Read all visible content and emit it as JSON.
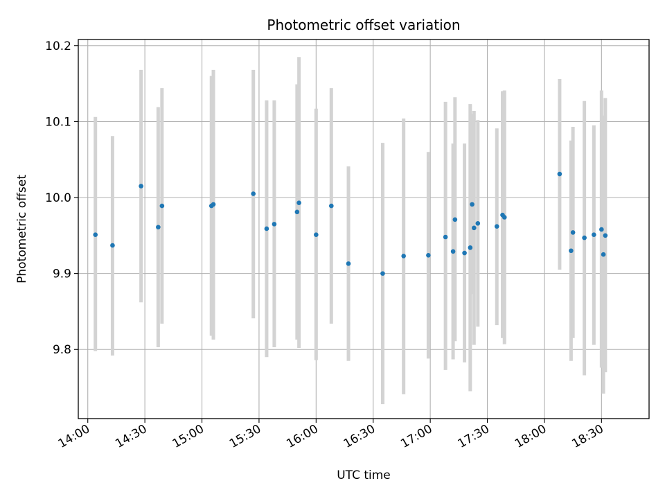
{
  "chart_data": {
    "type": "scatter",
    "title": "Photometric offset variation",
    "xlabel": "UTC time",
    "ylabel": "Photometric offset",
    "x_ticks": [
      "14:00",
      "14:30",
      "15:00",
      "15:30",
      "16:00",
      "16:30",
      "17:00",
      "17:30",
      "18:00",
      "18:30"
    ],
    "y_ticks": [
      "9.8",
      "9.9",
      "10.0",
      "10.1",
      "10.2"
    ],
    "xlim": [
      "13:55",
      "18:55"
    ],
    "ylim": [
      9.709,
      10.208
    ],
    "grid": true,
    "error_bar_color": "#d3d3d3",
    "point_color": "#1f77b4",
    "series": [
      {
        "points": [
          {
            "x": "14:04",
            "y": 9.951,
            "ylow": 9.798,
            "yhigh": 10.106
          },
          {
            "x": "14:13",
            "y": 9.937,
            "ylow": 9.792,
            "yhigh": 10.081
          },
          {
            "x": "14:28",
            "y": 10.015,
            "ylow": 9.862,
            "yhigh": 10.168
          },
          {
            "x": "14:37",
            "y": 9.961,
            "ylow": 9.803,
            "yhigh": 10.119
          },
          {
            "x": "14:39",
            "y": 9.989,
            "ylow": 9.834,
            "yhigh": 10.144
          },
          {
            "x": "15:05",
            "y": 9.989,
            "ylow": 9.818,
            "yhigh": 10.16
          },
          {
            "x": "15:06",
            "y": 9.991,
            "ylow": 9.813,
            "yhigh": 10.168
          },
          {
            "x": "15:27",
            "y": 10.005,
            "ylow": 9.841,
            "yhigh": 10.168
          },
          {
            "x": "15:34",
            "y": 9.959,
            "ylow": 9.79,
            "yhigh": 10.128
          },
          {
            "x": "15:38",
            "y": 9.965,
            "ylow": 9.803,
            "yhigh": 10.128
          },
          {
            "x": "15:50",
            "y": 9.981,
            "ylow": 9.813,
            "yhigh": 10.149
          },
          {
            "x": "15:51",
            "y": 9.993,
            "ylow": 9.802,
            "yhigh": 10.185
          },
          {
            "x": "16:00",
            "y": 9.951,
            "ylow": 9.786,
            "yhigh": 10.117
          },
          {
            "x": "16:08",
            "y": 9.989,
            "ylow": 9.834,
            "yhigh": 10.144
          },
          {
            "x": "16:17",
            "y": 9.913,
            "ylow": 9.785,
            "yhigh": 10.041
          },
          {
            "x": "16:35",
            "y": 9.9,
            "ylow": 9.728,
            "yhigh": 10.072
          },
          {
            "x": "16:46",
            "y": 9.923,
            "ylow": 9.741,
            "yhigh": 10.104
          },
          {
            "x": "16:59",
            "y": 9.924,
            "ylow": 9.788,
            "yhigh": 10.06
          },
          {
            "x": "17:08",
            "y": 9.948,
            "ylow": 9.773,
            "yhigh": 10.126
          },
          {
            "x": "17:12",
            "y": 9.929,
            "ylow": 9.787,
            "yhigh": 10.071
          },
          {
            "x": "17:13",
            "y": 9.971,
            "ylow": 9.811,
            "yhigh": 10.132
          },
          {
            "x": "17:18",
            "y": 9.927,
            "ylow": 9.783,
            "yhigh": 10.071
          },
          {
            "x": "17:21",
            "y": 9.934,
            "ylow": 9.745,
            "yhigh": 10.123
          },
          {
            "x": "17:22",
            "y": 9.991,
            "ylow": 9.873,
            "yhigh": 10.11
          },
          {
            "x": "17:23",
            "y": 9.96,
            "ylow": 9.806,
            "yhigh": 10.114
          },
          {
            "x": "17:25",
            "y": 9.966,
            "ylow": 9.83,
            "yhigh": 10.102
          },
          {
            "x": "17:35",
            "y": 9.962,
            "ylow": 9.832,
            "yhigh": 10.091
          },
          {
            "x": "17:38",
            "y": 9.977,
            "ylow": 9.815,
            "yhigh": 10.14
          },
          {
            "x": "17:39",
            "y": 9.974,
            "ylow": 9.807,
            "yhigh": 10.141
          },
          {
            "x": "18:08",
            "y": 10.031,
            "ylow": 9.905,
            "yhigh": 10.156
          },
          {
            "x": "18:14",
            "y": 9.93,
            "ylow": 9.785,
            "yhigh": 10.075
          },
          {
            "x": "18:15",
            "y": 9.954,
            "ylow": 9.815,
            "yhigh": 10.093
          },
          {
            "x": "18:21",
            "y": 9.947,
            "ylow": 9.766,
            "yhigh": 10.127
          },
          {
            "x": "18:26",
            "y": 9.951,
            "ylow": 9.806,
            "yhigh": 10.095
          },
          {
            "x": "18:30",
            "y": 9.958,
            "ylow": 9.776,
            "yhigh": 10.141
          },
          {
            "x": "18:31",
            "y": 9.925,
            "ylow": 9.742,
            "yhigh": 10.108
          },
          {
            "x": "18:32",
            "y": 9.95,
            "ylow": 9.77,
            "yhigh": 10.131
          }
        ]
      }
    ]
  }
}
